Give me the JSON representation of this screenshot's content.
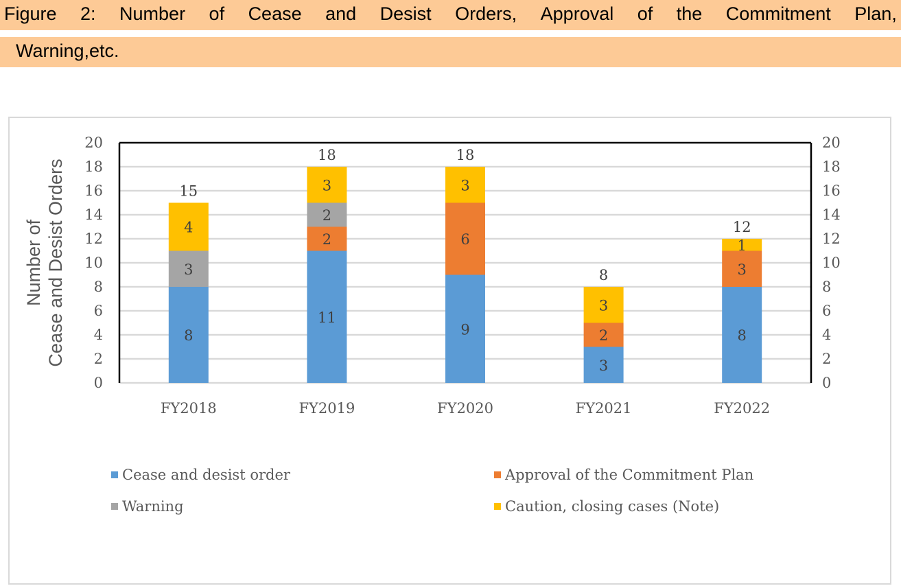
{
  "caption": {
    "line1_words": [
      "Figure",
      "2:",
      "Number",
      "of",
      "Cease",
      "and",
      "Desist",
      "Orders,",
      "Approval",
      "of",
      "the",
      "Commitment",
      "Plan,"
    ],
    "line2": "Warning,etc."
  },
  "chart_data": {
    "type": "bar",
    "stacked": true,
    "title": "Figure 2: Number of Cease and Desist Orders, Approval of the Commitment Plan, Warning,etc.",
    "categories": [
      "FY2018",
      "FY2019",
      "FY2020",
      "FY2021",
      "FY2022"
    ],
    "series": [
      {
        "name": "Cease and desist order",
        "color": "#5b9bd5",
        "values": [
          8,
          11,
          9,
          3,
          8
        ]
      },
      {
        "name": "Approval of the Commitment Plan",
        "color": "#ed7d31",
        "values": [
          0,
          2,
          6,
          2,
          3
        ]
      },
      {
        "name": "Warning",
        "color": "#a5a5a5",
        "values": [
          3,
          2,
          0,
          0,
          0
        ]
      },
      {
        "name": "Caution, closing cases (Note)",
        "color": "#ffc000",
        "values": [
          4,
          3,
          3,
          3,
          1
        ]
      }
    ],
    "totals": [
      15,
      18,
      18,
      8,
      12
    ],
    "ylabel_lines": [
      "Number of",
      "Cease and Desist Orders"
    ],
    "xlabel": "",
    "ylim": [
      0,
      20
    ],
    "yticks": [
      0,
      2,
      4,
      6,
      8,
      10,
      12,
      14,
      16,
      18,
      20
    ],
    "secondary_ylim": [
      0,
      20
    ],
    "grid": true,
    "legend_position": "bottom"
  }
}
